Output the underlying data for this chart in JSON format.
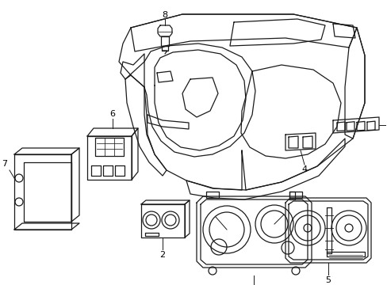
{
  "background_color": "#ffffff",
  "line_color": "#1a1a1a",
  "lw": 0.9,
  "fig_w": 4.89,
  "fig_h": 3.6,
  "dpi": 100
}
